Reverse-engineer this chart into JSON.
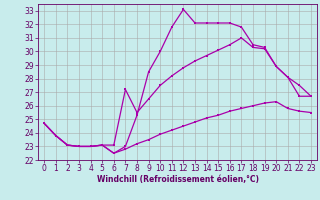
{
  "xlabel": "Windchill (Refroidissement éolien,°C)",
  "bg_color": "#c8ecec",
  "line_color": "#aa00aa",
  "xlim": [
    -0.5,
    23.5
  ],
  "ylim": [
    22,
    33.5
  ],
  "xticks": [
    0,
    1,
    2,
    3,
    4,
    5,
    6,
    7,
    8,
    9,
    10,
    11,
    12,
    13,
    14,
    15,
    16,
    17,
    18,
    19,
    20,
    21,
    22,
    23
  ],
  "yticks": [
    22,
    23,
    24,
    25,
    26,
    27,
    28,
    29,
    30,
    31,
    32,
    33
  ],
  "line1_x": [
    0,
    1,
    2,
    3,
    4,
    5,
    6,
    7,
    8,
    9,
    10,
    11,
    12,
    13,
    14,
    15,
    16,
    17,
    18,
    19,
    20,
    21,
    22,
    23
  ],
  "line1_y": [
    24.7,
    23.8,
    23.1,
    23.0,
    23.0,
    23.1,
    22.5,
    23.0,
    25.3,
    28.5,
    30.0,
    31.8,
    33.1,
    32.1,
    32.1,
    32.1,
    32.1,
    31.8,
    30.5,
    30.3,
    28.9,
    28.1,
    26.7,
    26.7
  ],
  "line2_x": [
    0,
    1,
    2,
    3,
    4,
    5,
    6,
    7,
    8,
    9,
    10,
    11,
    12,
    13,
    14,
    15,
    16,
    17,
    18,
    19,
    20,
    21,
    22,
    23
  ],
  "line2_y": [
    24.7,
    23.8,
    23.1,
    23.0,
    23.0,
    23.1,
    23.1,
    27.2,
    25.5,
    26.5,
    27.5,
    28.2,
    28.8,
    29.3,
    29.7,
    30.1,
    30.5,
    31.0,
    30.3,
    30.2,
    28.9,
    28.1,
    27.5,
    26.7
  ],
  "line3_x": [
    0,
    1,
    2,
    3,
    4,
    5,
    6,
    7,
    8,
    9,
    10,
    11,
    12,
    13,
    14,
    15,
    16,
    17,
    18,
    19,
    20,
    21,
    22,
    23
  ],
  "line3_y": [
    24.7,
    23.8,
    23.1,
    23.0,
    23.0,
    23.1,
    22.5,
    22.8,
    23.2,
    23.5,
    23.9,
    24.2,
    24.5,
    24.8,
    25.1,
    25.3,
    25.6,
    25.8,
    26.0,
    26.2,
    26.3,
    25.8,
    25.6,
    25.5
  ],
  "tick_fontsize": 5.5,
  "xlabel_fontsize": 5.5
}
